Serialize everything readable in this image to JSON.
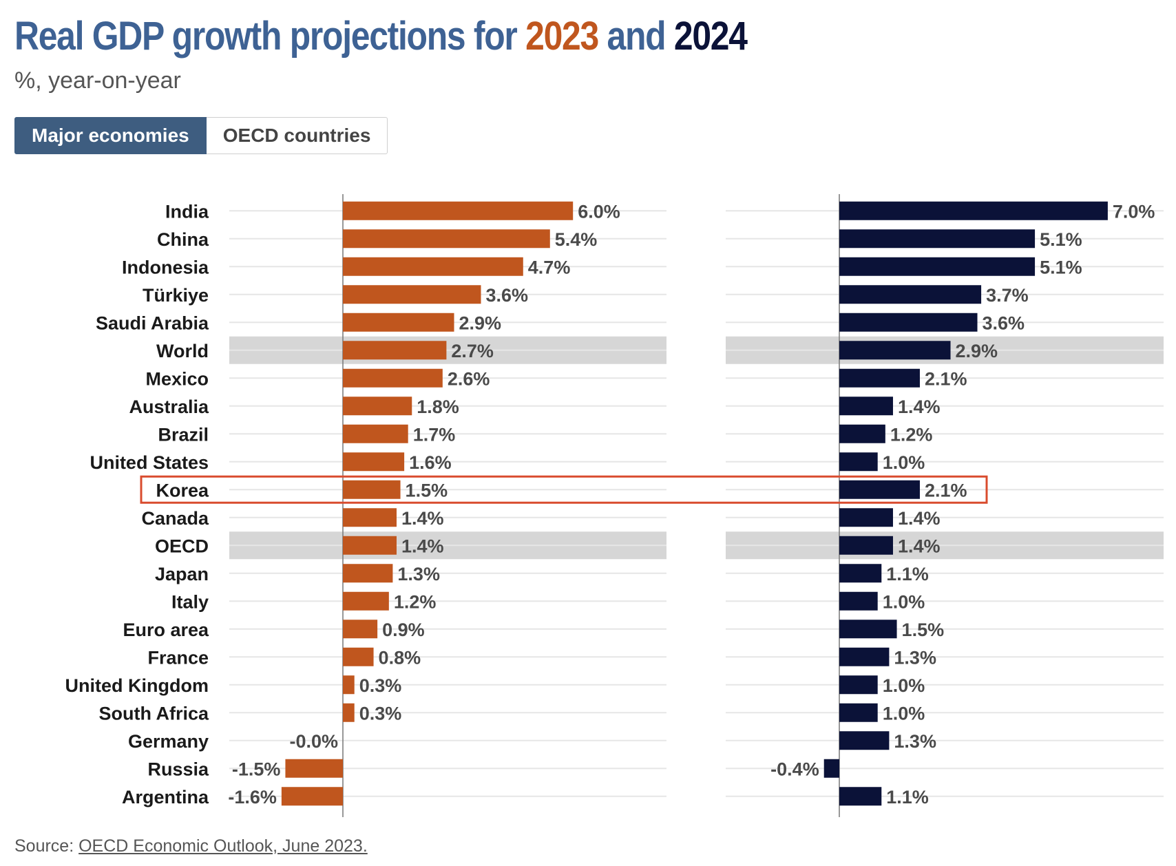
{
  "header": {
    "title_part1": "Real GDP growth projections for ",
    "title_year1": "2023",
    "title_part2": " and ",
    "title_year2": "2024",
    "subtitle": "%, year-on-year"
  },
  "tabs": [
    {
      "label": "Major economies",
      "active": true
    },
    {
      "label": "OECD countries",
      "active": false
    }
  ],
  "colors": {
    "title_blue": "#3e6294",
    "series_2023": "#c0561e",
    "series_2024": "#0b1238",
    "highlight_band": "#d6d6d6",
    "highlight_box": "#d94c2e"
  },
  "chart_data": {
    "type": "bar",
    "orientation": "horizontal",
    "categories": [
      "India",
      "China",
      "Indonesia",
      "Türkiye",
      "Saudi Arabia",
      "World",
      "Mexico",
      "Australia",
      "Brazil",
      "United States",
      "Korea",
      "Canada",
      "OECD",
      "Japan",
      "Italy",
      "Euro area",
      "France",
      "United Kingdom",
      "South Africa",
      "Germany",
      "Russia",
      "Argentina"
    ],
    "series": [
      {
        "name": "2023",
        "values": [
          6.0,
          5.4,
          4.7,
          3.6,
          2.9,
          2.7,
          2.6,
          1.8,
          1.7,
          1.6,
          1.5,
          1.4,
          1.4,
          1.3,
          1.2,
          0.9,
          0.8,
          0.3,
          0.3,
          -0.0,
          -1.5,
          -1.6
        ],
        "labels": [
          "6.0%",
          "5.4%",
          "4.7%",
          "3.6%",
          "2.9%",
          "2.7%",
          "2.6%",
          "1.8%",
          "1.7%",
          "1.6%",
          "1.5%",
          "1.4%",
          "1.4%",
          "1.3%",
          "1.2%",
          "0.9%",
          "0.8%",
          "0.3%",
          "0.3%",
          "-0.0%",
          "-1.5%",
          "-1.6%"
        ]
      },
      {
        "name": "2024",
        "values": [
          7.0,
          5.1,
          5.1,
          3.7,
          3.6,
          2.9,
          2.1,
          1.4,
          1.2,
          1.0,
          2.1,
          1.4,
          1.4,
          1.1,
          1.0,
          1.5,
          1.3,
          1.0,
          1.0,
          1.3,
          -0.4,
          1.1
        ],
        "labels": [
          "7.0%",
          "5.1%",
          "5.1%",
          "3.7%",
          "3.6%",
          "2.9%",
          "2.1%",
          "1.4%",
          "1.2%",
          "1.0%",
          "2.1%",
          "1.4%",
          "1.4%",
          "1.1%",
          "1.0%",
          "1.5%",
          "1.3%",
          "1.0%",
          "1.0%",
          "1.3%",
          "-0.4%",
          "1.1%"
        ]
      }
    ],
    "shaded_rows": [
      "World",
      "OECD"
    ],
    "outlined_row": "Korea",
    "panels": [
      {
        "series": "2023",
        "xlim": [
          -3.0,
          8.4
        ]
      },
      {
        "series": "2024",
        "xlim": [
          -3.0,
          8.4
        ]
      }
    ]
  },
  "source": {
    "prefix": "Source: ",
    "link_text": "OECD Economic Outlook, June 2023."
  }
}
